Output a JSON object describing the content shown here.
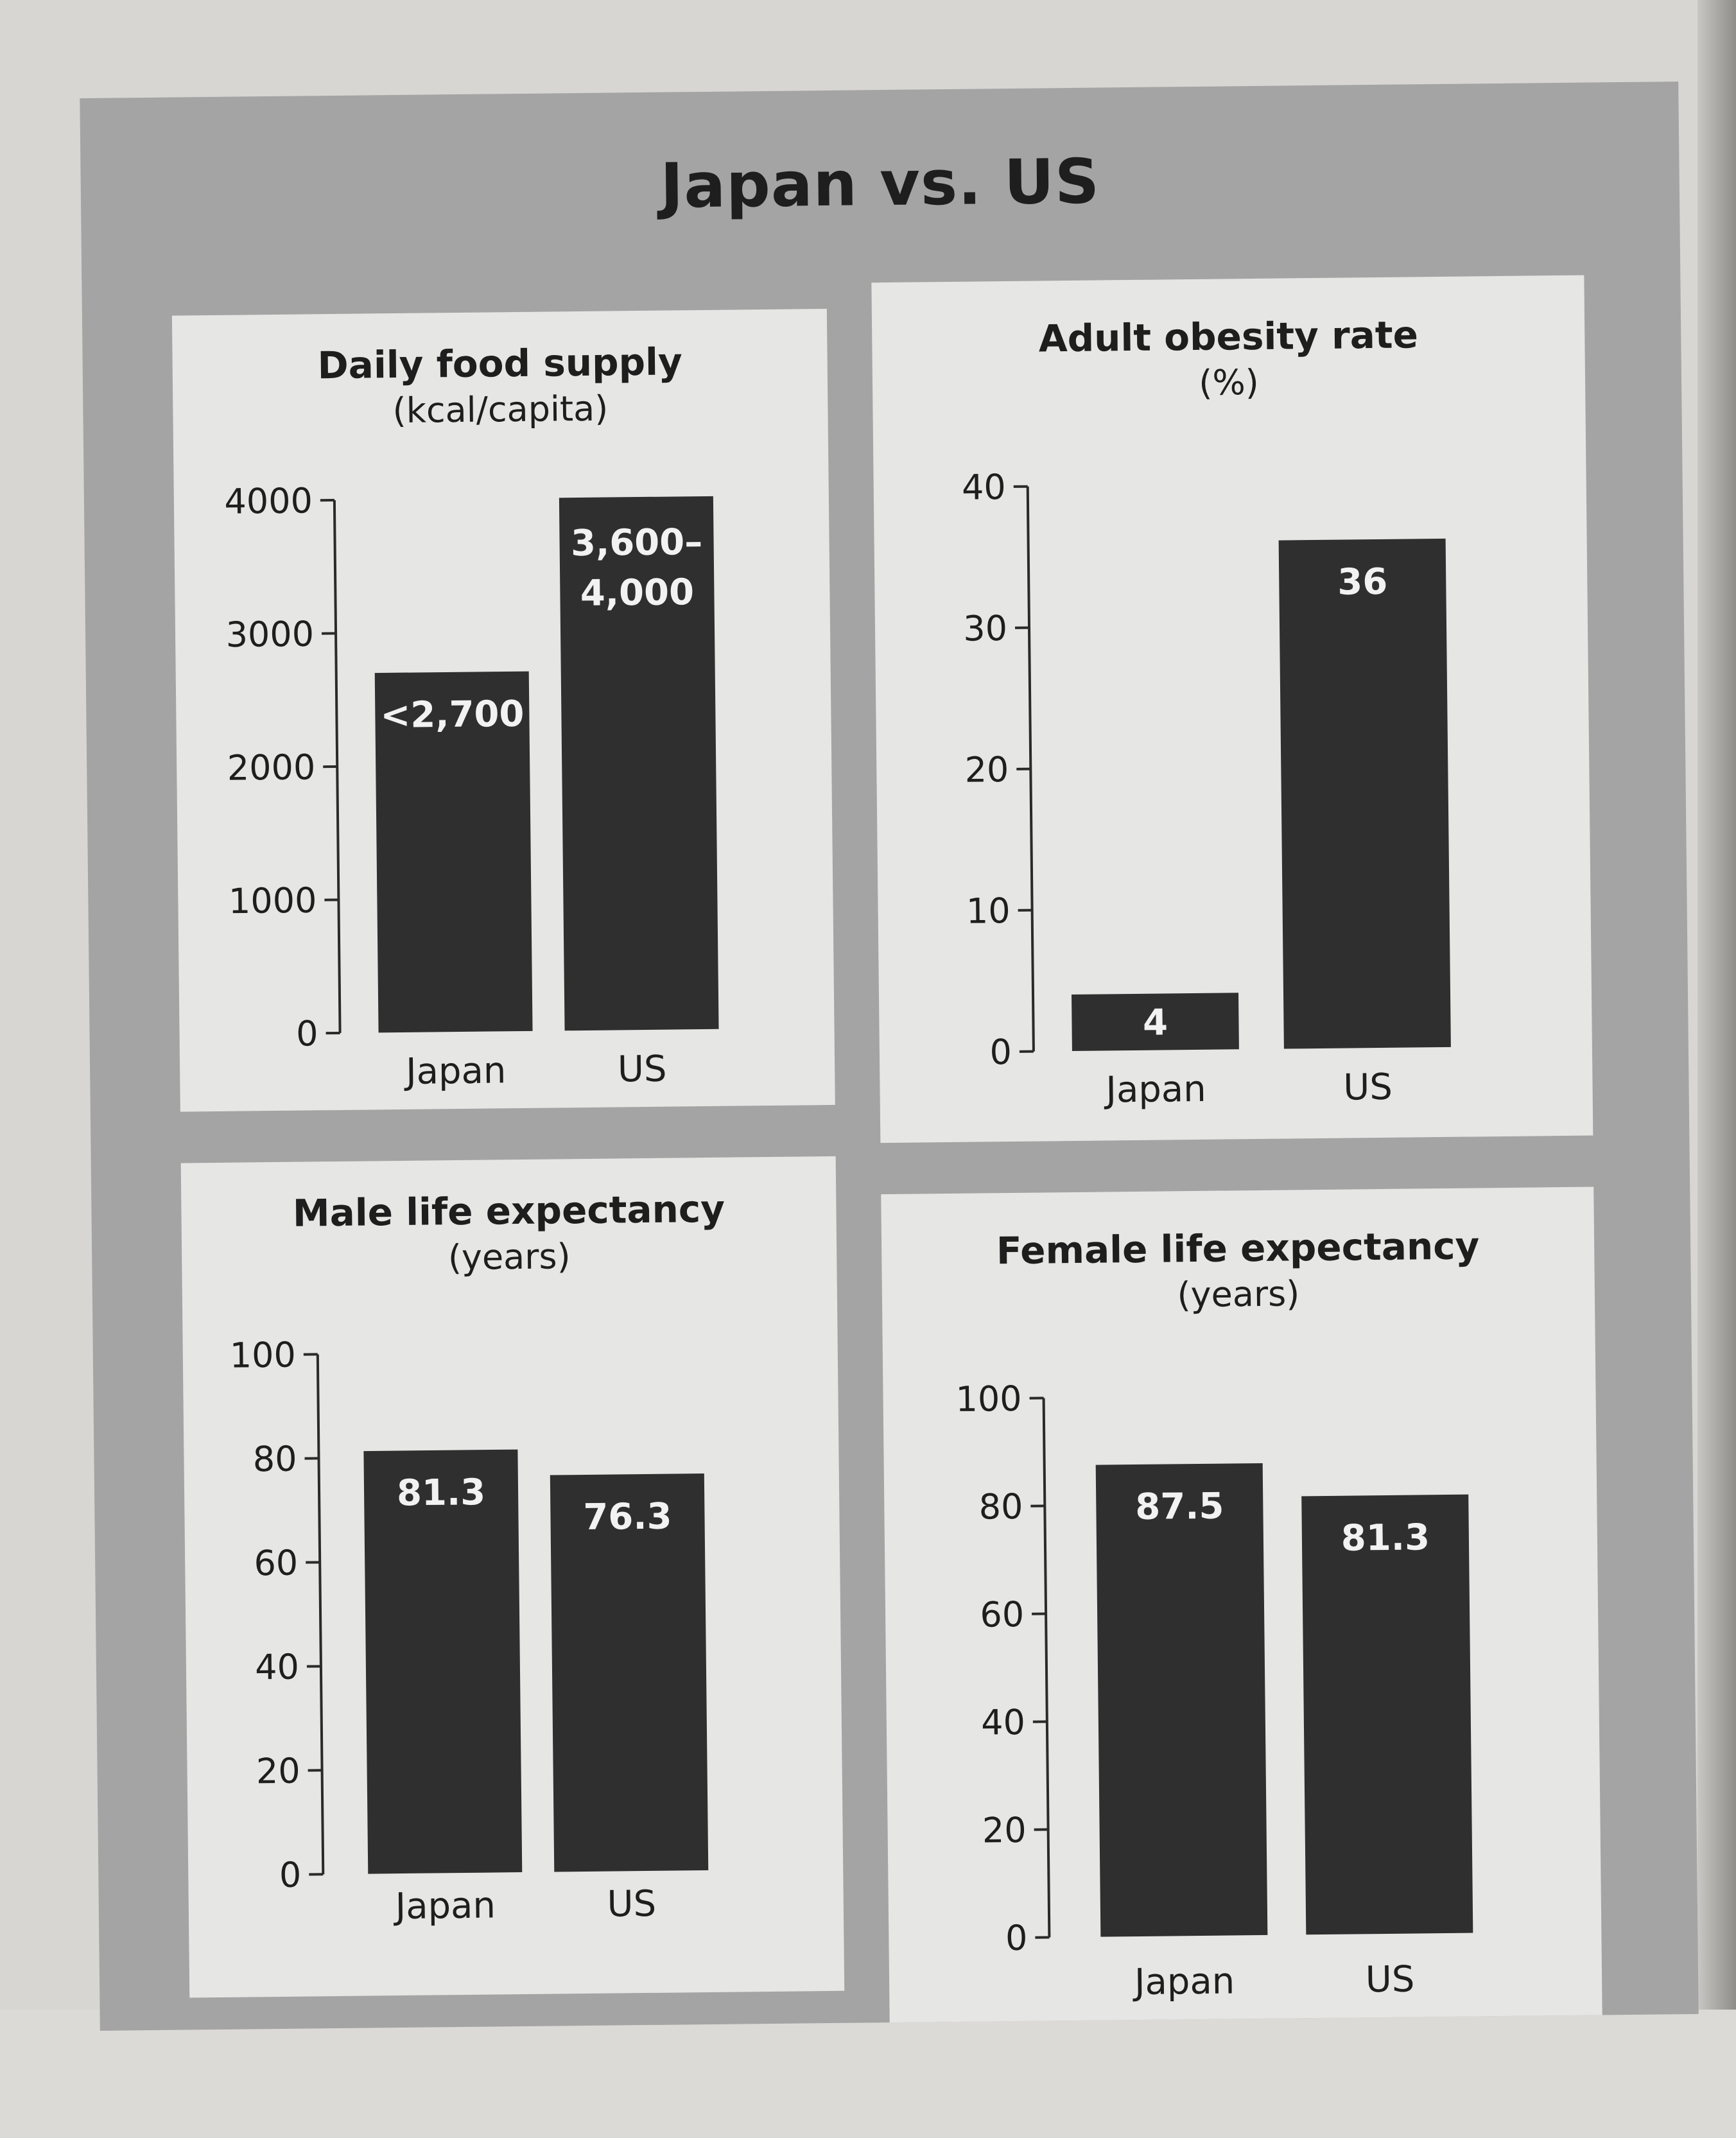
{
  "page": {
    "title": "Japan vs. US",
    "colors": {
      "bar": "#2f2f2f",
      "panel": "#a4a4a4",
      "box": "#e6e6e4"
    }
  },
  "chart_data": [
    {
      "type": "bar",
      "title": "Daily food supply",
      "subtitle": "(kcal/capita)",
      "categories": [
        "Japan",
        "US"
      ],
      "values": [
        2700,
        4000
      ],
      "value_labels": [
        "<2,700",
        "3,600–\n4,000"
      ],
      "yticks": [
        "0",
        "1000",
        "2000",
        "3000",
        "4000"
      ],
      "ylim": [
        0,
        4000
      ]
    },
    {
      "type": "bar",
      "title": "Adult obesity rate",
      "subtitle": "(%)",
      "categories": [
        "Japan",
        "US"
      ],
      "values": [
        4,
        36
      ],
      "value_labels": [
        "4",
        "36"
      ],
      "yticks": [
        "0",
        "10",
        "20",
        "30",
        "40"
      ],
      "ylim": [
        0,
        40
      ]
    },
    {
      "type": "bar",
      "title": "Male life expectancy",
      "subtitle": "(years)",
      "categories": [
        "Japan",
        "US"
      ],
      "values": [
        81.3,
        76.3
      ],
      "value_labels": [
        "81.3",
        "76.3"
      ],
      "yticks": [
        "0",
        "20",
        "40",
        "60",
        "80",
        "100"
      ],
      "ylim": [
        0,
        100
      ]
    },
    {
      "type": "bar",
      "title": "Female life expectancy",
      "subtitle": "(years)",
      "categories": [
        "Japan",
        "US"
      ],
      "values": [
        87.5,
        81.3
      ],
      "value_labels": [
        "87.5",
        "81.3"
      ],
      "yticks": [
        "0",
        "20",
        "40",
        "60",
        "80",
        "100"
      ],
      "ylim": [
        0,
        100
      ]
    }
  ]
}
